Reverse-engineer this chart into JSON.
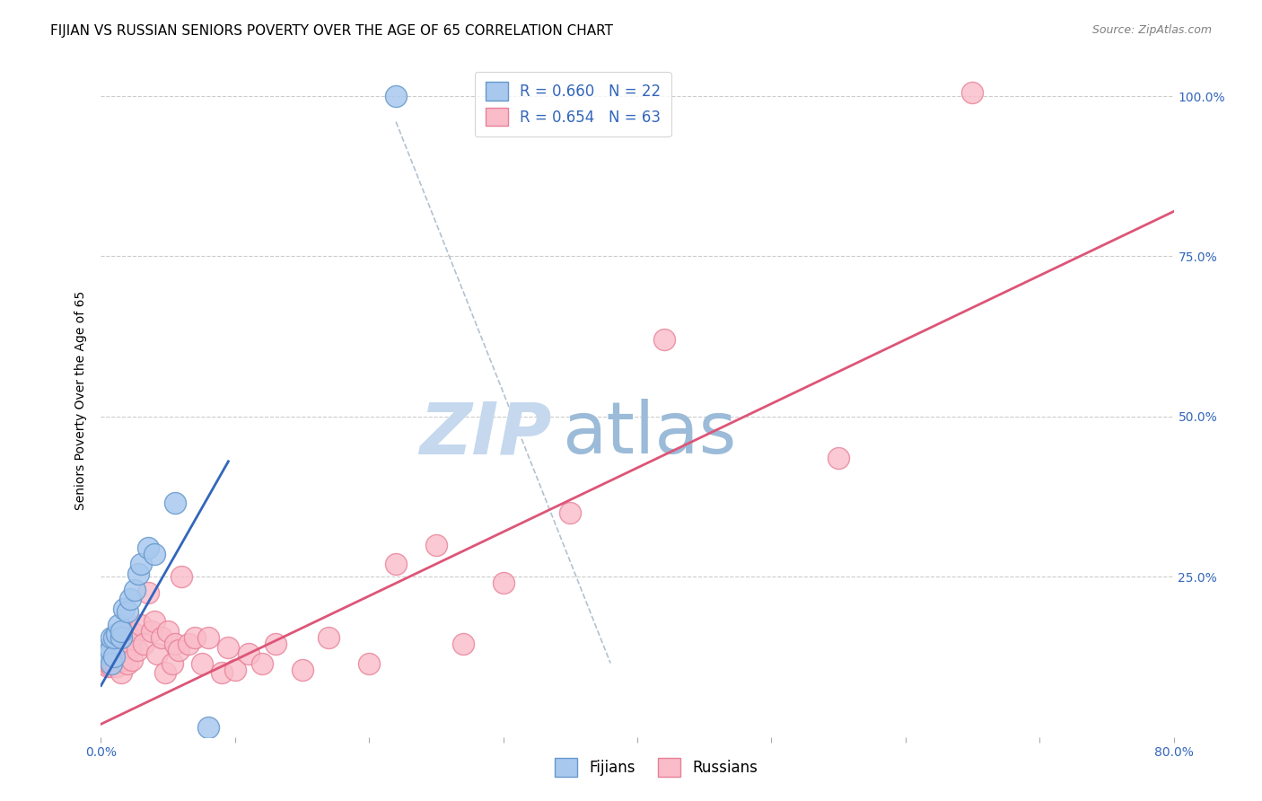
{
  "title": "FIJIAN VS RUSSIAN SENIORS POVERTY OVER THE AGE OF 65 CORRELATION CHART",
  "source": "Source: ZipAtlas.com",
  "ylabel": "Seniors Poverty Over the Age of 65",
  "xlim": [
    0.0,
    0.8
  ],
  "ylim": [
    0.0,
    1.05
  ],
  "xtick_positions": [
    0.0,
    0.1,
    0.2,
    0.3,
    0.4,
    0.5,
    0.6,
    0.7,
    0.8
  ],
  "xticklabels": [
    "0.0%",
    "",
    "",
    "",
    "",
    "",
    "",
    "",
    "80.0%"
  ],
  "yticks": [
    0.0,
    0.25,
    0.5,
    0.75,
    1.0
  ],
  "right_yticklabels": [
    "",
    "25.0%",
    "50.0%",
    "75.0%",
    "100.0%"
  ],
  "fijian_color": "#A8C8EE",
  "russian_color": "#F9BCC8",
  "fijian_edge_color": "#6699CC",
  "russian_edge_color": "#E88098",
  "blue_line_color": "#3366BB",
  "pink_line_color": "#DD5577",
  "dashed_line_color": "#AABBCC",
  "grid_color": "#CCCCCC",
  "watermark_zip": "ZIP",
  "watermark_atlas": "atlas",
  "watermark_color_zip": "#C5D8EE",
  "watermark_color_atlas": "#9BBBD8",
  "legend_R_fijian": "R = 0.660",
  "legend_N_fijian": "N = 22",
  "legend_R_russian": "R = 0.654",
  "legend_N_russian": "N = 63",
  "fijian_x": [
    0.002,
    0.005,
    0.007,
    0.008,
    0.008,
    0.01,
    0.01,
    0.012,
    0.013,
    0.015,
    0.015,
    0.017,
    0.02,
    0.022,
    0.025,
    0.028,
    0.03,
    0.035,
    0.04,
    0.055,
    0.08,
    0.22
  ],
  "fijian_y": [
    0.135,
    0.13,
    0.135,
    0.115,
    0.155,
    0.125,
    0.155,
    0.16,
    0.175,
    0.155,
    0.165,
    0.2,
    0.195,
    0.215,
    0.23,
    0.255,
    0.27,
    0.295,
    0.285,
    0.365,
    0.015,
    1.0
  ],
  "russian_x": [
    0.002,
    0.003,
    0.004,
    0.005,
    0.005,
    0.006,
    0.007,
    0.007,
    0.008,
    0.008,
    0.009,
    0.01,
    0.01,
    0.011,
    0.012,
    0.013,
    0.014,
    0.015,
    0.015,
    0.016,
    0.017,
    0.018,
    0.019,
    0.02,
    0.021,
    0.022,
    0.023,
    0.025,
    0.027,
    0.03,
    0.032,
    0.035,
    0.038,
    0.04,
    0.042,
    0.045,
    0.048,
    0.05,
    0.053,
    0.055,
    0.058,
    0.06,
    0.065,
    0.07,
    0.075,
    0.08,
    0.09,
    0.095,
    0.1,
    0.11,
    0.12,
    0.13,
    0.15,
    0.17,
    0.2,
    0.22,
    0.25,
    0.27,
    0.3,
    0.35,
    0.42,
    0.55,
    0.65
  ],
  "russian_y": [
    0.115,
    0.12,
    0.125,
    0.11,
    0.135,
    0.115,
    0.12,
    0.13,
    0.11,
    0.14,
    0.12,
    0.115,
    0.145,
    0.125,
    0.11,
    0.14,
    0.13,
    0.1,
    0.155,
    0.145,
    0.12,
    0.13,
    0.165,
    0.115,
    0.155,
    0.14,
    0.12,
    0.16,
    0.135,
    0.175,
    0.145,
    0.225,
    0.165,
    0.18,
    0.13,
    0.155,
    0.1,
    0.165,
    0.115,
    0.145,
    0.135,
    0.25,
    0.145,
    0.155,
    0.115,
    0.155,
    0.1,
    0.14,
    0.105,
    0.13,
    0.115,
    0.145,
    0.105,
    0.155,
    0.115,
    0.27,
    0.3,
    0.145,
    0.24,
    0.35,
    0.62,
    0.435,
    1.005
  ],
  "blue_line_x": [
    0.0,
    0.095
  ],
  "blue_line_y": [
    0.08,
    0.43
  ],
  "pink_line_x": [
    0.0,
    0.8
  ],
  "pink_line_y": [
    0.02,
    0.82
  ],
  "dashed_line_x": [
    0.22,
    0.38
  ],
  "dashed_line_y": [
    0.96,
    0.115
  ],
  "title_fontsize": 11,
  "axis_label_fontsize": 10,
  "tick_fontsize": 10,
  "legend_fontsize": 12,
  "source_fontsize": 9,
  "tick_color": "#3366BB"
}
